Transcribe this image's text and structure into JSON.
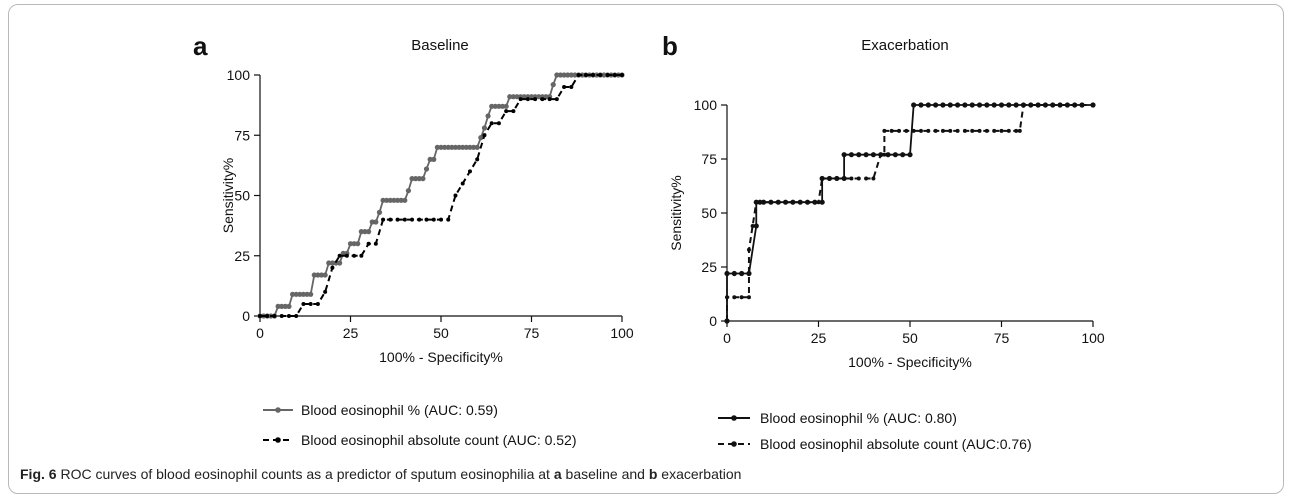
{
  "caption": {
    "fig_label": "Fig. 6",
    "part1": " ROC curves of blood eosinophil counts as a predictor of sputum eosinophilia at ",
    "a": "a",
    "part2": " baseline and ",
    "b": "b",
    "part3": " exacerbation"
  },
  "chart_data": [
    {
      "type": "line",
      "panel": "a",
      "title": "Baseline",
      "xlabel": "100% - Specificity%",
      "ylabel": "Sensitivity%",
      "xlim": [
        0,
        100
      ],
      "ylim": [
        0,
        100
      ],
      "xticks": [
        0,
        25,
        50,
        75,
        100
      ],
      "yticks": [
        0,
        25,
        50,
        75,
        100
      ],
      "grid": false,
      "legend_position": "bottom",
      "series": [
        {
          "name": "Blood eosinophil % (AUC: 0.59)",
          "color": "#666666",
          "dashed": false,
          "x": [
            0,
            1,
            2,
            3,
            4,
            5,
            6,
            7,
            8,
            9,
            10,
            11,
            12,
            13,
            14,
            15,
            16,
            17,
            18,
            19,
            20,
            21,
            22,
            23,
            24,
            25,
            26,
            27,
            28,
            29,
            30,
            31,
            32,
            33,
            34,
            35,
            36,
            37,
            38,
            39,
            40,
            41,
            42,
            43,
            44,
            45,
            46,
            47,
            48,
            49,
            50,
            51,
            52,
            53,
            54,
            55,
            56,
            57,
            58,
            59,
            60,
            61,
            62,
            63,
            64,
            65,
            66,
            67,
            68,
            69,
            70,
            71,
            72,
            73,
            74,
            75,
            76,
            77,
            78,
            79,
            80,
            81,
            82,
            83,
            84,
            85,
            86,
            87,
            88,
            89,
            90,
            91,
            92,
            93,
            94,
            95,
            96,
            97,
            98,
            99,
            100
          ],
          "y": [
            0,
            0,
            0,
            0,
            0,
            4,
            4,
            4,
            4,
            9,
            9,
            9,
            9,
            9,
            9,
            17,
            17,
            17,
            17,
            22,
            22,
            22,
            22,
            26,
            26,
            30,
            30,
            30,
            35,
            35,
            35,
            39,
            39,
            43,
            48,
            48,
            48,
            48,
            48,
            48,
            48,
            52,
            57,
            57,
            57,
            57,
            61,
            65,
            65,
            70,
            70,
            70,
            70,
            70,
            70,
            70,
            70,
            70,
            70,
            70,
            70,
            74,
            78,
            83,
            87,
            87,
            87,
            87,
            87,
            91,
            91,
            91,
            91,
            91,
            91,
            91,
            91,
            91,
            91,
            91,
            91,
            96,
            100,
            100,
            100,
            100,
            100,
            100,
            100,
            100,
            100,
            100,
            100,
            100,
            100,
            100,
            100,
            100,
            100,
            100,
            100
          ]
        },
        {
          "name": "Blood eosinophil absolute count (AUC: 0.52)",
          "color": "#000000",
          "dashed": true,
          "x": [
            0,
            2,
            4,
            6,
            8,
            10,
            12,
            14,
            16,
            18,
            20,
            22,
            24,
            26,
            28,
            30,
            32,
            34,
            36,
            38,
            40,
            42,
            44,
            46,
            48,
            50,
            52,
            54,
            56,
            58,
            60,
            62,
            64,
            66,
            68,
            70,
            72,
            74,
            76,
            78,
            80,
            82,
            84,
            86,
            88,
            90,
            92,
            94,
            96,
            98,
            100
          ],
          "y": [
            0,
            0,
            0,
            0,
            0,
            0,
            5,
            5,
            5,
            10,
            20,
            25,
            25,
            25,
            25,
            30,
            30,
            40,
            40,
            40,
            40,
            40,
            40,
            40,
            40,
            40,
            40,
            50,
            55,
            60,
            65,
            75,
            80,
            80,
            85,
            85,
            90,
            90,
            90,
            90,
            90,
            90,
            95,
            95,
            100,
            100,
            100,
            100,
            100,
            100,
            100
          ]
        }
      ]
    },
    {
      "type": "line",
      "panel": "b",
      "title": "Exacerbation",
      "xlabel": "100% - Specificity%",
      "ylabel": "Sensitivity%",
      "xlim": [
        0,
        100
      ],
      "ylim": [
        0,
        100
      ],
      "xticks": [
        0,
        25,
        50,
        75,
        100
      ],
      "yticks": [
        0,
        25,
        50,
        75,
        100
      ],
      "grid": false,
      "legend_position": "bottom",
      "series": [
        {
          "name": "Blood eosinophil % (AUC: 0.80)",
          "color": "#111111",
          "dashed": false,
          "x": [
            0,
            0,
            2,
            4,
            6,
            8,
            8,
            9,
            10,
            12,
            14,
            16,
            18,
            20,
            22,
            24,
            26,
            26,
            28,
            30,
            32,
            32,
            34,
            36,
            38,
            40,
            42,
            44,
            46,
            48,
            50,
            51,
            53,
            55,
            57,
            59,
            61,
            63,
            65,
            67,
            69,
            71,
            73,
            75,
            77,
            79,
            81,
            83,
            85,
            87,
            89,
            91,
            93,
            95,
            97,
            100
          ],
          "y": [
            0,
            22,
            22,
            22,
            22,
            44,
            55,
            55,
            55,
            55,
            55,
            55,
            55,
            55,
            55,
            55,
            55,
            66,
            66,
            66,
            66,
            77,
            77,
            77,
            77,
            77,
            77,
            77,
            77,
            77,
            77,
            100,
            100,
            100,
            100,
            100,
            100,
            100,
            100,
            100,
            100,
            100,
            100,
            100,
            100,
            100,
            100,
            100,
            100,
            100,
            100,
            100,
            100,
            100,
            100,
            100
          ]
        },
        {
          "name": "Blood eosinophil absolute count (AUC:0.76)",
          "color": "#111111",
          "dashed": true,
          "x": [
            0,
            0,
            2,
            4,
            6,
            6,
            7,
            8,
            10,
            12,
            14,
            16,
            18,
            20,
            22,
            24,
            25,
            26,
            28,
            30,
            32,
            34,
            36,
            38,
            40,
            42,
            43,
            43,
            45,
            47,
            49,
            51,
            53,
            55,
            57,
            59,
            61,
            63,
            65,
            67,
            69,
            71,
            73,
            75,
            77,
            79,
            80,
            81,
            83,
            85,
            87,
            89,
            91,
            93,
            95,
            97,
            100
          ],
          "y": [
            0,
            11,
            11,
            11,
            11,
            33,
            44,
            55,
            55,
            55,
            55,
            55,
            55,
            55,
            55,
            55,
            55,
            66,
            66,
            66,
            66,
            66,
            66,
            66,
            66,
            77,
            77,
            88,
            88,
            88,
            88,
            88,
            88,
            88,
            88,
            88,
            88,
            88,
            88,
            88,
            88,
            88,
            88,
            88,
            88,
            88,
            88,
            100,
            100,
            100,
            100,
            100,
            100,
            100,
            100,
            100,
            100
          ]
        }
      ]
    }
  ]
}
